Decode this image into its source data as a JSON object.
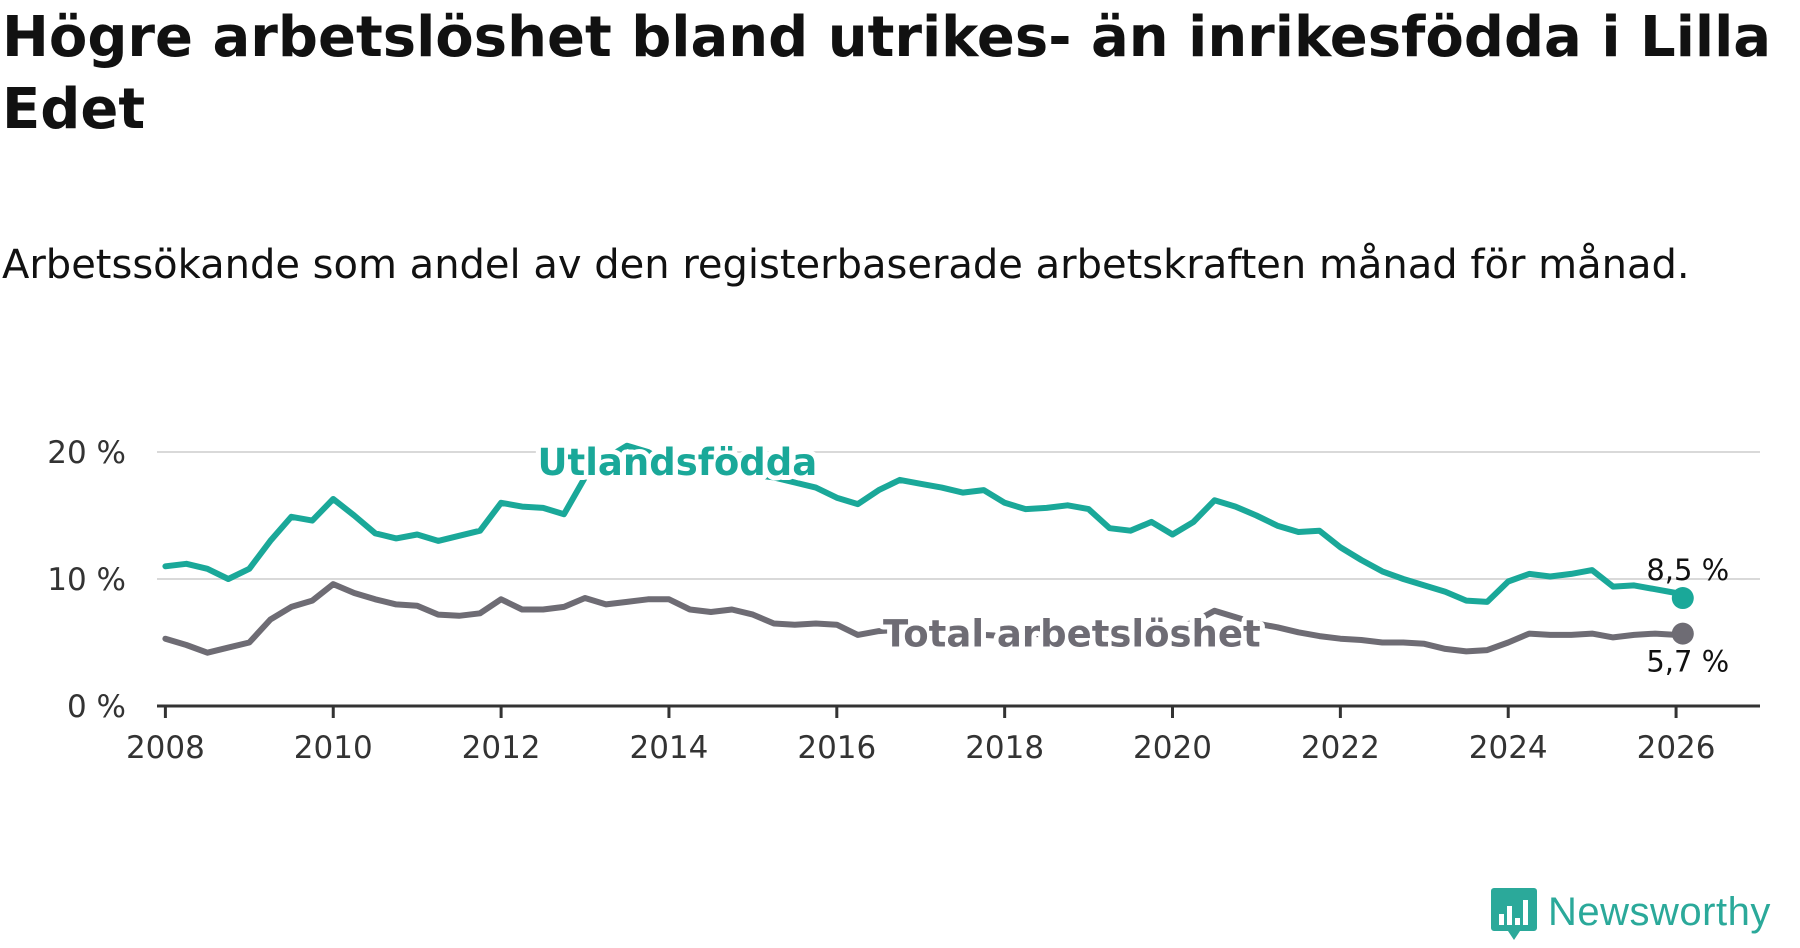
{
  "title": "Högre arbetslöshet bland utrikes- än inrikesfödda i Lilla Edet",
  "subtitle": "Arbetssökande som andel av den registerbaserade arbetskraften månad för månad.",
  "brand": {
    "name": "Newsworthy",
    "icon": "newsworthy-logo-icon"
  },
  "colors": {
    "foreign": "#1aa899",
    "total": "#6e6c74",
    "grid": "#d9d9d9",
    "axis": "#333333",
    "text": "#111111"
  },
  "chart_data": {
    "type": "line",
    "title": "Högre arbetslöshet bland utrikes- än inrikesfödda i Lilla Edet",
    "xlabel": "",
    "ylabel": "",
    "xlim": [
      2007.9,
      2027.0
    ],
    "ylim": [
      0,
      20
    ],
    "x_ticks": [
      2008,
      2010,
      2012,
      2014,
      2016,
      2018,
      2020,
      2022,
      2024,
      2026
    ],
    "x_tick_labels": [
      "2008",
      "2010",
      "2012",
      "2014",
      "2016",
      "2018",
      "2020",
      "2022",
      "2024",
      "2026"
    ],
    "y_ticks": [
      0,
      10,
      20
    ],
    "y_tick_labels": [
      "0 %",
      "10 %",
      "20 %"
    ],
    "grid": true,
    "series": [
      {
        "name": "Utlandsfödda",
        "color": "#1aa899",
        "end_label": "8,5 %",
        "points": [
          [
            2008.0,
            11.0
          ],
          [
            2008.25,
            11.2
          ],
          [
            2008.5,
            10.8
          ],
          [
            2008.75,
            10.0
          ],
          [
            2009.0,
            10.8
          ],
          [
            2009.25,
            13.0
          ],
          [
            2009.5,
            14.9
          ],
          [
            2009.75,
            14.6
          ],
          [
            2010.0,
            16.3
          ],
          [
            2010.25,
            15.0
          ],
          [
            2010.5,
            13.6
          ],
          [
            2010.75,
            13.2
          ],
          [
            2011.0,
            13.5
          ],
          [
            2011.25,
            13.0
          ],
          [
            2011.5,
            13.4
          ],
          [
            2011.75,
            13.8
          ],
          [
            2012.0,
            16.0
          ],
          [
            2012.25,
            15.7
          ],
          [
            2012.5,
            15.6
          ],
          [
            2012.75,
            15.1
          ],
          [
            2013.0,
            18.0
          ],
          [
            2013.25,
            19.5
          ],
          [
            2013.5,
            20.5
          ],
          [
            2013.75,
            20.0
          ],
          [
            2014.0,
            19.0
          ],
          [
            2014.25,
            18.3
          ],
          [
            2014.5,
            18.6
          ],
          [
            2014.75,
            19.0
          ],
          [
            2015.0,
            18.2
          ],
          [
            2015.25,
            18.0
          ],
          [
            2015.5,
            17.6
          ],
          [
            2015.75,
            17.2
          ],
          [
            2016.0,
            16.4
          ],
          [
            2016.25,
            15.9
          ],
          [
            2016.5,
            17.0
          ],
          [
            2016.75,
            17.8
          ],
          [
            2017.0,
            17.5
          ],
          [
            2017.25,
            17.2
          ],
          [
            2017.5,
            16.8
          ],
          [
            2017.75,
            17.0
          ],
          [
            2018.0,
            16.0
          ],
          [
            2018.25,
            15.5
          ],
          [
            2018.5,
            15.6
          ],
          [
            2018.75,
            15.8
          ],
          [
            2019.0,
            15.5
          ],
          [
            2019.25,
            14.0
          ],
          [
            2019.5,
            13.8
          ],
          [
            2019.75,
            14.5
          ],
          [
            2020.0,
            13.5
          ],
          [
            2020.25,
            14.5
          ],
          [
            2020.5,
            16.2
          ],
          [
            2020.75,
            15.7
          ],
          [
            2021.0,
            15.0
          ],
          [
            2021.25,
            14.2
          ],
          [
            2021.5,
            13.7
          ],
          [
            2021.75,
            13.8
          ],
          [
            2022.0,
            12.5
          ],
          [
            2022.25,
            11.5
          ],
          [
            2022.5,
            10.6
          ],
          [
            2022.75,
            10.0
          ],
          [
            2023.0,
            9.5
          ],
          [
            2023.25,
            9.0
          ],
          [
            2023.5,
            8.3
          ],
          [
            2023.75,
            8.2
          ],
          [
            2024.0,
            9.8
          ],
          [
            2024.25,
            10.4
          ],
          [
            2024.5,
            10.2
          ],
          [
            2024.75,
            10.4
          ],
          [
            2025.0,
            10.7
          ],
          [
            2025.25,
            9.4
          ],
          [
            2025.5,
            9.5
          ],
          [
            2025.75,
            9.2
          ],
          [
            2026.0,
            8.9
          ],
          [
            2026.08,
            8.5
          ]
        ]
      },
      {
        "name": "Total arbetslöshet",
        "color": "#6e6c74",
        "end_label": "5,7 %",
        "points": [
          [
            2008.0,
            5.3
          ],
          [
            2008.25,
            4.8
          ],
          [
            2008.5,
            4.2
          ],
          [
            2008.75,
            4.6
          ],
          [
            2009.0,
            5.0
          ],
          [
            2009.25,
            6.8
          ],
          [
            2009.5,
            7.8
          ],
          [
            2009.75,
            8.3
          ],
          [
            2010.0,
            9.6
          ],
          [
            2010.25,
            8.9
          ],
          [
            2010.5,
            8.4
          ],
          [
            2010.75,
            8.0
          ],
          [
            2011.0,
            7.9
          ],
          [
            2011.25,
            7.2
          ],
          [
            2011.5,
            7.1
          ],
          [
            2011.75,
            7.3
          ],
          [
            2012.0,
            8.4
          ],
          [
            2012.25,
            7.6
          ],
          [
            2012.5,
            7.6
          ],
          [
            2012.75,
            7.8
          ],
          [
            2013.0,
            8.5
          ],
          [
            2013.25,
            8.0
          ],
          [
            2013.5,
            8.2
          ],
          [
            2013.75,
            8.4
          ],
          [
            2014.0,
            8.4
          ],
          [
            2014.25,
            7.6
          ],
          [
            2014.5,
            7.4
          ],
          [
            2014.75,
            7.6
          ],
          [
            2015.0,
            7.2
          ],
          [
            2015.25,
            6.5
          ],
          [
            2015.5,
            6.4
          ],
          [
            2015.75,
            6.5
          ],
          [
            2016.0,
            6.4
          ],
          [
            2016.25,
            5.6
          ],
          [
            2016.5,
            5.9
          ],
          [
            2016.75,
            6.0
          ],
          [
            2017.0,
            6.0
          ],
          [
            2017.25,
            5.8
          ],
          [
            2017.5,
            5.5
          ],
          [
            2017.75,
            5.6
          ],
          [
            2018.0,
            5.5
          ],
          [
            2018.25,
            5.6
          ],
          [
            2018.5,
            5.7
          ],
          [
            2018.75,
            5.8
          ],
          [
            2019.0,
            5.6
          ],
          [
            2019.25,
            5.5
          ],
          [
            2019.5,
            5.6
          ],
          [
            2019.75,
            5.8
          ],
          [
            2020.0,
            6.0
          ],
          [
            2020.25,
            6.6
          ],
          [
            2020.5,
            7.5
          ],
          [
            2020.75,
            7.0
          ],
          [
            2021.0,
            6.5
          ],
          [
            2021.25,
            6.2
          ],
          [
            2021.5,
            5.8
          ],
          [
            2021.75,
            5.5
          ],
          [
            2022.0,
            5.3
          ],
          [
            2022.25,
            5.2
          ],
          [
            2022.5,
            5.0
          ],
          [
            2022.75,
            5.0
          ],
          [
            2023.0,
            4.9
          ],
          [
            2023.25,
            4.5
          ],
          [
            2023.5,
            4.3
          ],
          [
            2023.75,
            4.4
          ],
          [
            2024.0,
            5.0
          ],
          [
            2024.25,
            5.7
          ],
          [
            2024.5,
            5.6
          ],
          [
            2024.75,
            5.6
          ],
          [
            2025.0,
            5.7
          ],
          [
            2025.25,
            5.4
          ],
          [
            2025.5,
            5.6
          ],
          [
            2025.75,
            5.7
          ],
          [
            2026.0,
            5.6
          ],
          [
            2026.08,
            5.7
          ]
        ]
      }
    ]
  }
}
